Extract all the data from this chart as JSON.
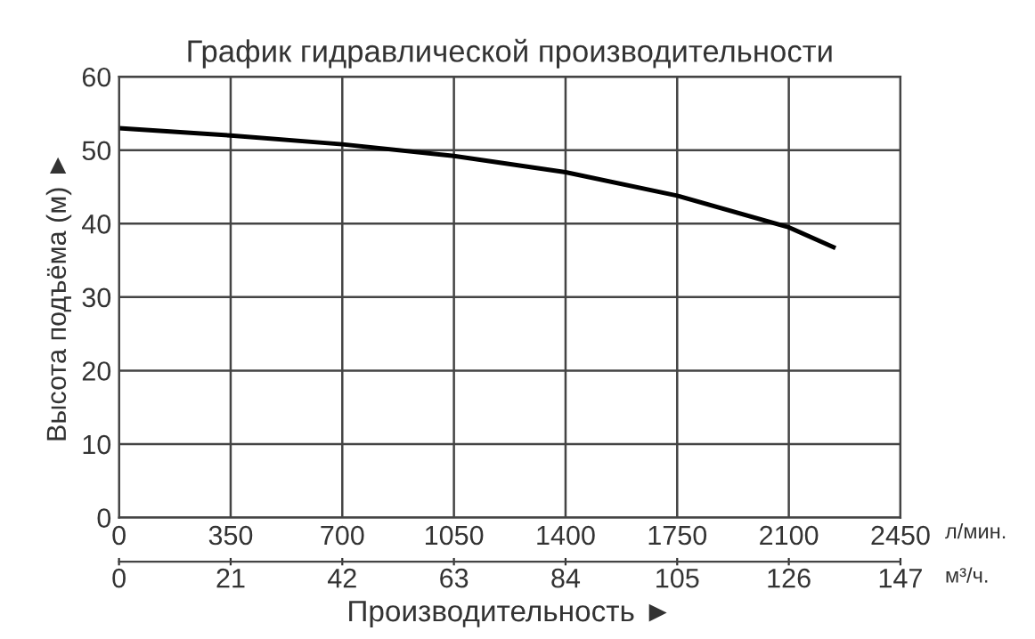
{
  "chart_data": {
    "type": "line",
    "title": "График гидравлической производительности",
    "xlabel": "Производительность ►",
    "ylabel": "Высота подъёма (м) ►",
    "x": [
      0,
      350,
      700,
      1050,
      1400,
      1750,
      2100,
      2240
    ],
    "series": [
      {
        "color": "#000000",
        "values": [
          53,
          52,
          50.8,
          49.2,
          47,
          43.8,
          39.5,
          36.8
        ]
      }
    ],
    "xlim": [
      0,
      2450
    ],
    "xticks": [
      0,
      350,
      700,
      1050,
      1400,
      1750,
      2100,
      2450
    ],
    "x2lim": [
      0,
      147
    ],
    "x2ticks": [
      0,
      21,
      42,
      63,
      84,
      105,
      126,
      147
    ],
    "ylim": [
      0,
      60
    ],
    "yticks": [
      0,
      10,
      20,
      30,
      40,
      50,
      60
    ],
    "annotations": [
      "л/мин.",
      "м³/ч."
    ],
    "grid": true,
    "marker": "none",
    "line_style": "solid"
  }
}
